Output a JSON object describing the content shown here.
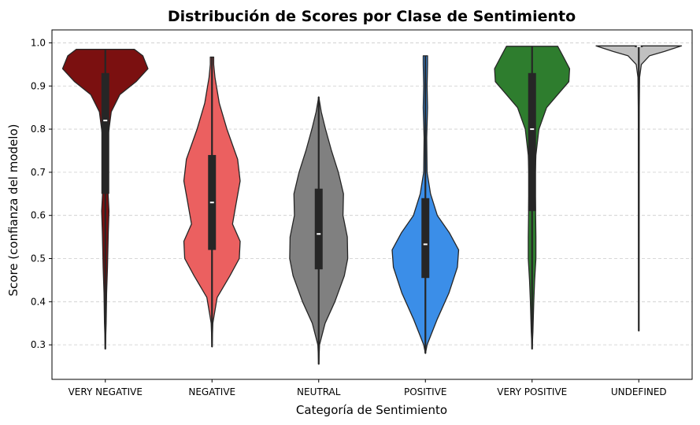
{
  "chart_data": {
    "type": "violin",
    "title": "Distribución de Scores por Clase de Sentimiento",
    "xlabel": "Categoría de Sentimiento",
    "ylabel": "Score (confianza del modelo)",
    "ylim": [
      0.22,
      1.03
    ],
    "yticks": [
      0.3,
      0.4,
      0.5,
      0.6,
      0.7,
      0.8,
      0.9,
      1.0
    ],
    "yticks_text": [
      "0.3",
      "0.4",
      "0.5",
      "0.6",
      "0.7",
      "0.8",
      "0.9",
      "1.0"
    ],
    "grid": "y-dashed",
    "categories": [
      "VERY NEGATIVE",
      "NEGATIVE",
      "NEUTRAL",
      "POSITIVE",
      "VERY POSITIVE",
      "UNDEFINED"
    ],
    "colors": [
      "#7b1010",
      "#eb6060",
      "#808080",
      "#3b8ee8",
      "#2e7d2e",
      "#c0c0c0"
    ],
    "series": [
      {
        "category": "VERY NEGATIVE",
        "min": 0.29,
        "q1": 0.65,
        "median": 0.82,
        "q3": 0.93,
        "max": 0.985,
        "density": [
          [
            0.29,
            0.0
          ],
          [
            0.35,
            0.02
          ],
          [
            0.42,
            0.03
          ],
          [
            0.48,
            0.05
          ],
          [
            0.56,
            0.07
          ],
          [
            0.61,
            0.085
          ],
          [
            0.66,
            0.06
          ],
          [
            0.73,
            0.04
          ],
          [
            0.78,
            0.06
          ],
          [
            0.84,
            0.14
          ],
          [
            0.88,
            0.34
          ],
          [
            0.91,
            0.72
          ],
          [
            0.94,
            1.0
          ],
          [
            0.97,
            0.88
          ],
          [
            0.985,
            0.68
          ]
        ]
      },
      {
        "category": "NEGATIVE",
        "min": 0.295,
        "q1": 0.52,
        "median": 0.63,
        "q3": 0.74,
        "max": 0.967,
        "density": [
          [
            0.295,
            0.0
          ],
          [
            0.35,
            0.02
          ],
          [
            0.41,
            0.12
          ],
          [
            0.46,
            0.42
          ],
          [
            0.5,
            0.64
          ],
          [
            0.54,
            0.66
          ],
          [
            0.58,
            0.48
          ],
          [
            0.63,
            0.57
          ],
          [
            0.68,
            0.66
          ],
          [
            0.73,
            0.6
          ],
          [
            0.8,
            0.35
          ],
          [
            0.86,
            0.17
          ],
          [
            0.92,
            0.07
          ],
          [
            0.95,
            0.04
          ],
          [
            0.967,
            0.04
          ]
        ]
      },
      {
        "category": "NEUTRAL",
        "min": 0.255,
        "q1": 0.475,
        "median": 0.557,
        "q3": 0.662,
        "max": 0.875,
        "density": [
          [
            0.255,
            0.0
          ],
          [
            0.3,
            0.02
          ],
          [
            0.35,
            0.15
          ],
          [
            0.4,
            0.38
          ],
          [
            0.46,
            0.6
          ],
          [
            0.5,
            0.68
          ],
          [
            0.55,
            0.67
          ],
          [
            0.6,
            0.57
          ],
          [
            0.65,
            0.58
          ],
          [
            0.7,
            0.46
          ],
          [
            0.75,
            0.3
          ],
          [
            0.8,
            0.16
          ],
          [
            0.84,
            0.06
          ],
          [
            0.875,
            0.0
          ]
        ]
      },
      {
        "category": "POSITIVE",
        "min": 0.28,
        "q1": 0.455,
        "median": 0.533,
        "q3": 0.64,
        "max": 0.97,
        "density": [
          [
            0.28,
            0.0
          ],
          [
            0.3,
            0.04
          ],
          [
            0.36,
            0.28
          ],
          [
            0.42,
            0.55
          ],
          [
            0.48,
            0.75
          ],
          [
            0.52,
            0.78
          ],
          [
            0.56,
            0.56
          ],
          [
            0.6,
            0.28
          ],
          [
            0.65,
            0.12
          ],
          [
            0.7,
            0.04
          ],
          [
            0.78,
            0.03
          ],
          [
            0.85,
            0.05
          ],
          [
            0.9,
            0.04
          ],
          [
            0.95,
            0.05
          ],
          [
            0.97,
            0.05
          ]
        ]
      },
      {
        "category": "VERY POSITIVE",
        "min": 0.29,
        "q1": 0.61,
        "median": 0.8,
        "q3": 0.93,
        "max": 0.992,
        "density": [
          [
            0.29,
            0.0
          ],
          [
            0.33,
            0.02
          ],
          [
            0.4,
            0.04
          ],
          [
            0.45,
            0.06
          ],
          [
            0.5,
            0.09
          ],
          [
            0.55,
            0.09
          ],
          [
            0.62,
            0.08
          ],
          [
            0.68,
            0.07
          ],
          [
            0.74,
            0.09
          ],
          [
            0.8,
            0.16
          ],
          [
            0.85,
            0.34
          ],
          [
            0.88,
            0.6
          ],
          [
            0.91,
            0.86
          ],
          [
            0.94,
            0.88
          ],
          [
            0.97,
            0.72
          ],
          [
            0.992,
            0.6
          ]
        ]
      },
      {
        "category": "UNDEFINED",
        "min": 0.332,
        "q1": 0.99,
        "median": 0.992,
        "q3": 0.993,
        "max": 0.993,
        "density": [
          [
            0.332,
            0.0
          ],
          [
            0.5,
            0.004
          ],
          [
            0.7,
            0.008
          ],
          [
            0.85,
            0.012
          ],
          [
            0.92,
            0.02
          ],
          [
            0.95,
            0.06
          ],
          [
            0.97,
            0.25
          ],
          [
            0.98,
            0.6
          ],
          [
            0.993,
            1.0
          ]
        ]
      }
    ]
  }
}
